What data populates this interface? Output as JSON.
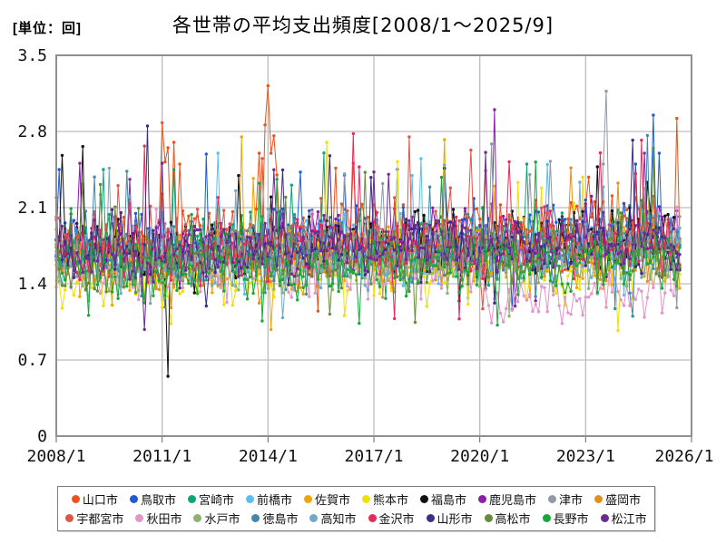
{
  "chart_data": {
    "type": "line",
    "title": "各世帯の平均支出頻度[2008/1～2025/9]",
    "unit_label": "[単位：回]",
    "x_start": "2008/1",
    "x_end": "2025/9",
    "data_months": 213,
    "x_months_total": 216,
    "ylim": [
      0,
      3.5
    ],
    "grid": true,
    "legend_position": "bottom",
    "y_ticks": [
      {
        "label": "0",
        "v": 0
      },
      {
        "label": "0.7",
        "v": 0.7
      },
      {
        "label": "1.4",
        "v": 1.4
      },
      {
        "label": "2.1",
        "v": 2.1
      },
      {
        "label": "2.8",
        "v": 2.8
      },
      {
        "label": "3.5",
        "v": 3.5
      }
    ],
    "x_ticks": [
      {
        "label": "2008/1",
        "m": 0
      },
      {
        "label": "2011/1",
        "m": 36
      },
      {
        "label": "2014/1",
        "m": 72
      },
      {
        "label": "2017/1",
        "m": 108
      },
      {
        "label": "2020/1",
        "m": 144
      },
      {
        "label": "2023/1",
        "m": 180
      },
      {
        "label": "2026/1",
        "m": 216
      }
    ],
    "band_note": "values fluctuate mostly between 1.1 and 2.6 around a 1.4–2.1 core band",
    "series": [
      {
        "name": "山口市",
        "color": "#e8541b",
        "base": 1.86,
        "amp": 0.34,
        "trend": 0.0006,
        "seed": 101,
        "events": {
          "36": 2.88,
          "37": 2.52,
          "38": 2.65,
          "40": 2.7,
          "42": 2.5,
          "69": 2.6,
          "71": 2.86,
          "72": 3.22,
          "73": 2.6,
          "74": 2.76,
          "75": 2.4,
          "211": 2.92
        }
      },
      {
        "name": "鳥取市",
        "color": "#1f5bd8",
        "base": 1.8,
        "amp": 0.33,
        "trend": 0.0008,
        "seed": 102,
        "events": {
          "1": 2.45,
          "197": 2.5,
          "203": 2.95,
          "205": 2.6
        }
      },
      {
        "name": "宮崎市",
        "color": "#0ca678",
        "base": 1.76,
        "amp": 0.3,
        "trend": 0.0004,
        "seed": 103,
        "events": {
          "16": 2.45,
          "40": 2.45,
          "160": 2.5
        }
      },
      {
        "name": "前橋市",
        "color": "#58c0f0",
        "base": 1.72,
        "amp": 0.31,
        "trend": 0.0005,
        "seed": 104,
        "events": {
          "55": 2.6,
          "124": 2.55
        }
      },
      {
        "name": "佐賀市",
        "color": "#f0a500",
        "base": 1.62,
        "amp": 0.31,
        "trend": 0.0005,
        "seed": 105,
        "events": {
          "63": 2.75
        }
      },
      {
        "name": "熊本市",
        "color": "#f0e000",
        "base": 1.52,
        "amp": 0.31,
        "trend": 0.0004,
        "seed": 106,
        "events": {
          "92": 2.7,
          "191": 0.97
        }
      },
      {
        "name": "福島市",
        "color": "#111111",
        "base": 1.74,
        "amp": 0.31,
        "trend": 0.0005,
        "seed": 107,
        "events": {
          "2": 2.58,
          "38": 0.55
        }
      },
      {
        "name": "鹿児島市",
        "color": "#8c1fa8",
        "base": 1.78,
        "amp": 0.3,
        "trend": 0.0004,
        "seed": 108,
        "events": {
          "149": 3.0,
          "200": 2.6
        }
      },
      {
        "name": "津市",
        "color": "#8f9aa5",
        "base": 1.72,
        "amp": 0.29,
        "trend": 0.0007,
        "seed": 109,
        "events": {
          "186": 2.5,
          "187": 3.17
        }
      },
      {
        "name": "盛岡市",
        "color": "#e2901c",
        "base": 1.66,
        "amp": 0.32,
        "trend": 0.0005,
        "seed": 110,
        "events": {
          "39": 1.18
        }
      },
      {
        "name": "宇都宮市",
        "color": "#e25544",
        "base": 1.78,
        "amp": 0.3,
        "trend": 0.0004,
        "seed": 111,
        "events": {
          "120": 2.75
        }
      },
      {
        "name": "秋田市",
        "color": "#e394cb",
        "base": 1.52,
        "amp": 0.27,
        "trend": 0,
        "seed": 112,
        "base2_from": 147,
        "base2": 1.3,
        "events": {
          "152": 1.05
        }
      },
      {
        "name": "水戸市",
        "color": "#8cb46e",
        "base": 1.6,
        "amp": 0.28,
        "trend": 0.0004,
        "seed": 113,
        "events": {}
      },
      {
        "name": "徳島市",
        "color": "#4089a8",
        "base": 1.68,
        "amp": 0.28,
        "trend": 0.0004,
        "seed": 114,
        "events": {}
      },
      {
        "name": "高知市",
        "color": "#72a9c8",
        "base": 1.64,
        "amp": 0.28,
        "trend": 0.0005,
        "seed": 115,
        "events": {}
      },
      {
        "name": "金沢市",
        "color": "#e82a5a",
        "base": 1.74,
        "amp": 0.3,
        "trend": 0.0004,
        "seed": 116,
        "events": {
          "101": 2.78
        }
      },
      {
        "name": "山形市",
        "color": "#3c2d85",
        "base": 1.7,
        "amp": 0.3,
        "trend": 0.0005,
        "seed": 117,
        "events": {
          "31": 2.85,
          "196": 2.72
        }
      },
      {
        "name": "高松市",
        "color": "#648c3c",
        "base": 1.62,
        "amp": 0.27,
        "trend": 0.0004,
        "seed": 118,
        "events": {}
      },
      {
        "name": "長野市",
        "color": "#16a83c",
        "base": 1.58,
        "amp": 0.29,
        "trend": 0.0004,
        "seed": 119,
        "events": {
          "150": 1.02
        }
      },
      {
        "name": "松江市",
        "color": "#6e2a90",
        "base": 1.72,
        "amp": 0.3,
        "trend": 0.0005,
        "seed": 120,
        "events": {}
      }
    ]
  }
}
